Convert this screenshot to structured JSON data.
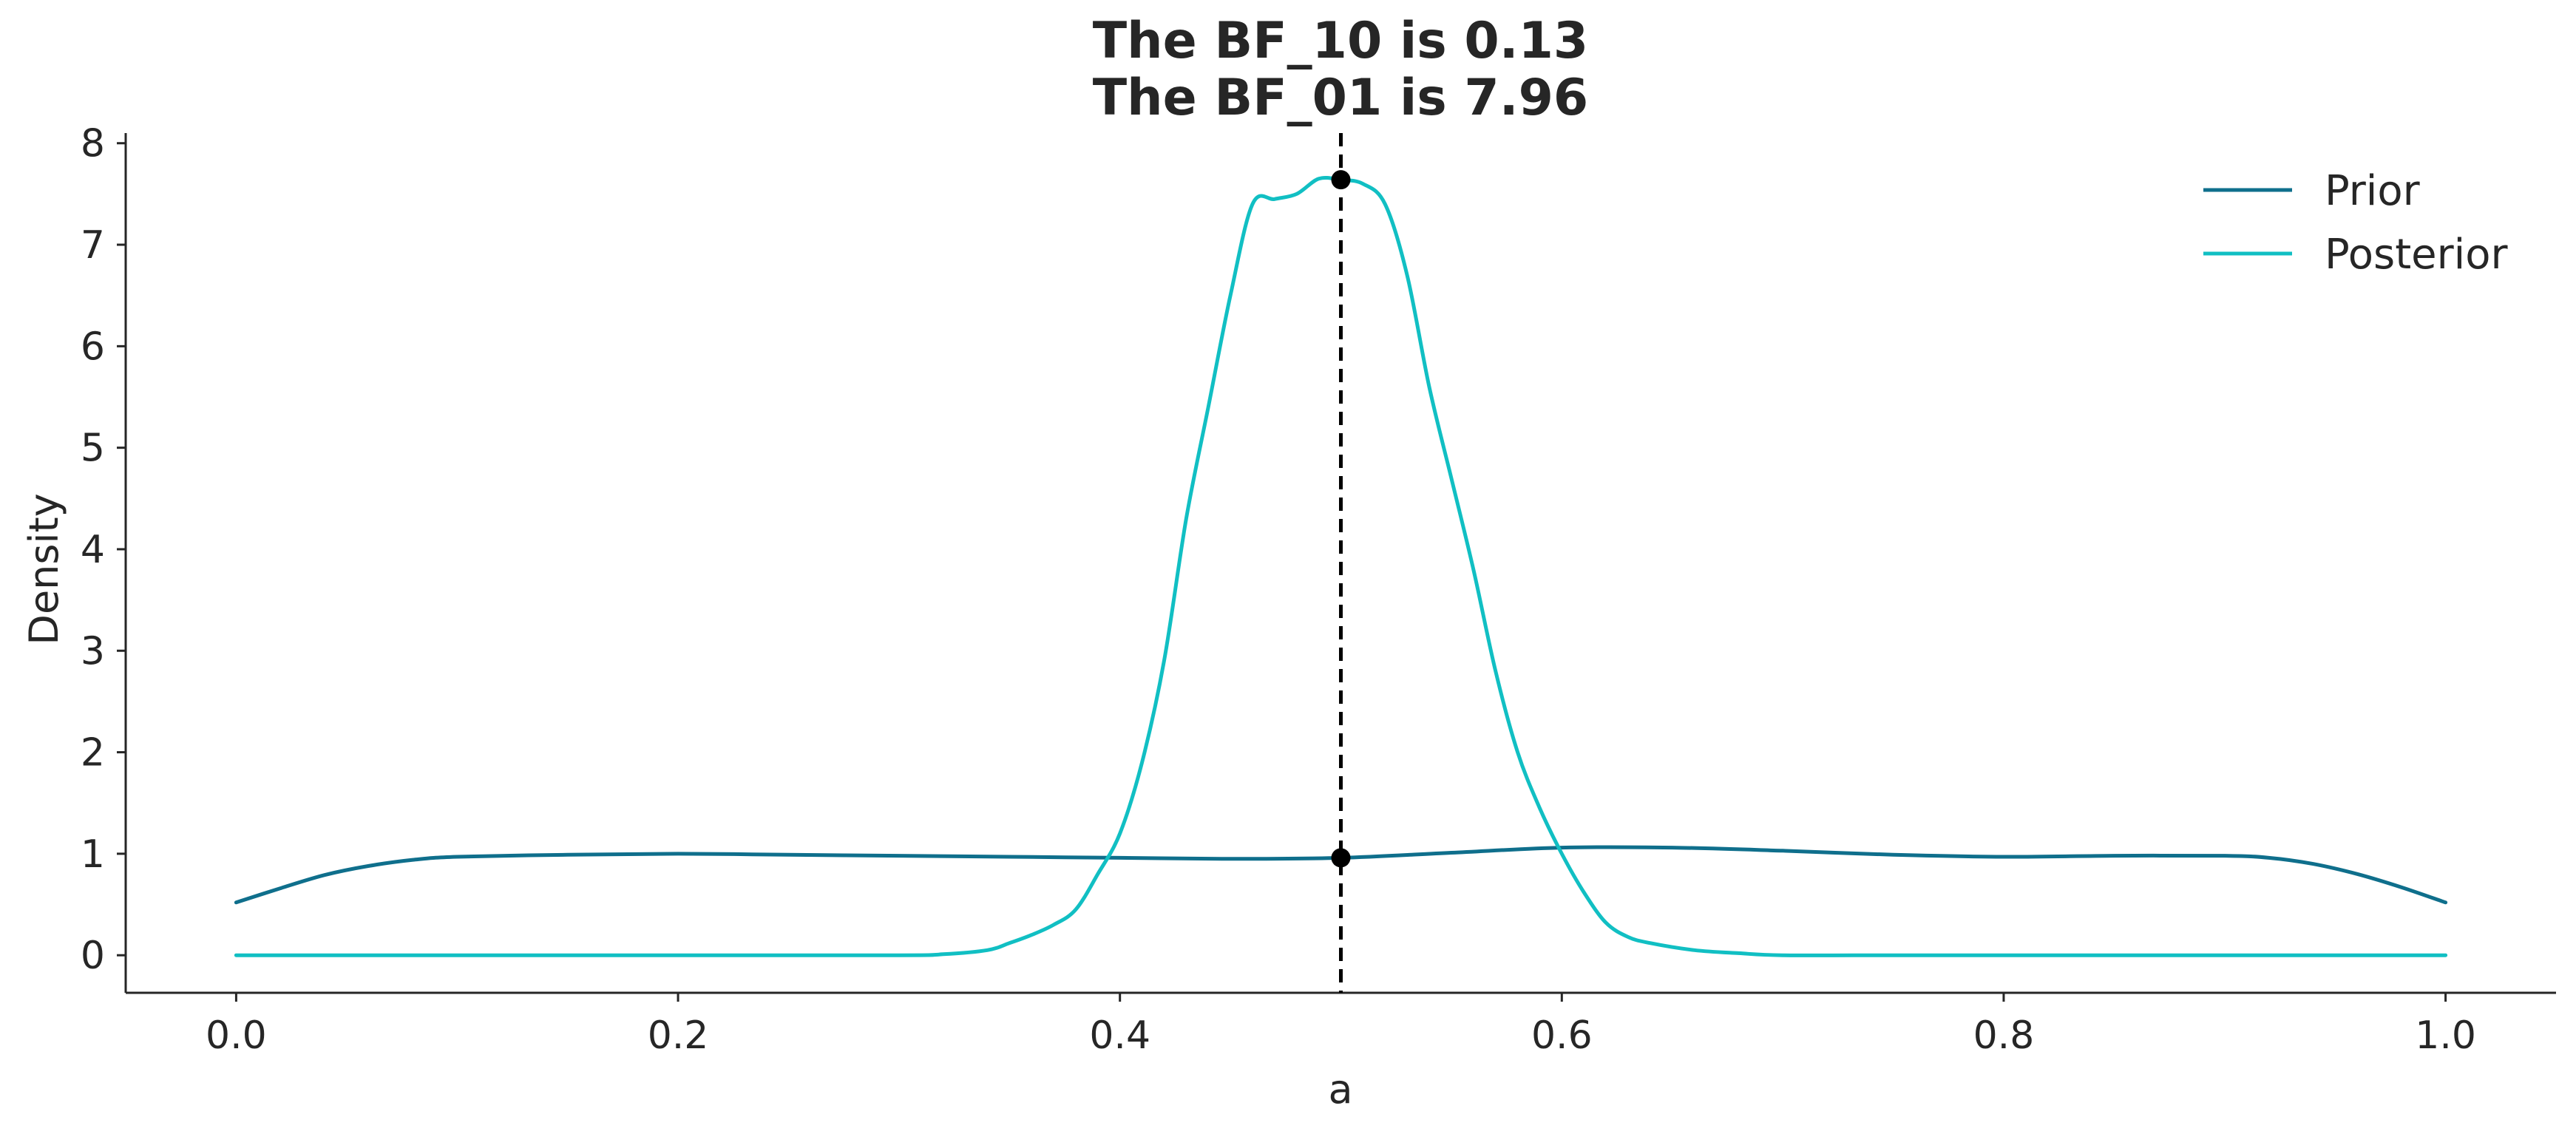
{
  "chart_data": {
    "type": "line",
    "title_lines": [
      "The BF_10 is 0.13",
      "The BF_01 is 7.96"
    ],
    "xlabel": "a",
    "ylabel": "Density",
    "xlim": [
      -0.05,
      1.05
    ],
    "ylim": [
      -0.37,
      8.1
    ],
    "x_ticks": [
      0.0,
      0.2,
      0.4,
      0.6,
      0.8,
      1.0
    ],
    "x_tick_labels": [
      "0.0",
      "0.2",
      "0.4",
      "0.6",
      "0.8",
      "1.0"
    ],
    "y_ticks": [
      0,
      1,
      2,
      3,
      4,
      5,
      6,
      7,
      8
    ],
    "y_tick_labels": [
      "0",
      "1",
      "2",
      "3",
      "4",
      "5",
      "6",
      "7",
      "8"
    ],
    "grid": false,
    "legend_position": "top-right",
    "reference_line": {
      "x": 0.5,
      "style": "dashed",
      "color": "#000000"
    },
    "reference_points": [
      {
        "x": 0.5,
        "y": 7.64,
        "series": "Posterior"
      },
      {
        "x": 0.5,
        "y": 0.96,
        "series": "Prior"
      }
    ],
    "series": [
      {
        "name": "Prior",
        "color": "#0f6f8c",
        "x": [
          0.0,
          0.02,
          0.04,
          0.06,
          0.08,
          0.1,
          0.15,
          0.2,
          0.25,
          0.3,
          0.35,
          0.4,
          0.45,
          0.5,
          0.55,
          0.6,
          0.65,
          0.7,
          0.75,
          0.8,
          0.85,
          0.9,
          0.92,
          0.94,
          0.96,
          0.98,
          1.0
        ],
        "y": [
          0.52,
          0.66,
          0.79,
          0.88,
          0.94,
          0.97,
          0.99,
          1.0,
          0.99,
          0.98,
          0.97,
          0.96,
          0.95,
          0.96,
          1.01,
          1.06,
          1.06,
          1.03,
          0.99,
          0.97,
          0.98,
          0.98,
          0.96,
          0.9,
          0.8,
          0.67,
          0.52
        ]
      },
      {
        "name": "Posterior",
        "color": "#11bfc3",
        "x": [
          0.0,
          0.1,
          0.2,
          0.3,
          0.32,
          0.34,
          0.35,
          0.36,
          0.37,
          0.38,
          0.39,
          0.4,
          0.41,
          0.42,
          0.43,
          0.44,
          0.45,
          0.46,
          0.47,
          0.48,
          0.49,
          0.5,
          0.51,
          0.52,
          0.53,
          0.54,
          0.55,
          0.56,
          0.57,
          0.58,
          0.59,
          0.6,
          0.61,
          0.62,
          0.63,
          0.64,
          0.66,
          0.68,
          0.7,
          0.75,
          0.8,
          0.9,
          1.0
        ],
        "y": [
          0.0,
          0.0,
          0.0,
          0.0,
          0.01,
          0.05,
          0.12,
          0.2,
          0.3,
          0.45,
          0.8,
          1.2,
          1.9,
          2.9,
          4.3,
          5.4,
          6.5,
          7.4,
          7.45,
          7.5,
          7.65,
          7.64,
          7.6,
          7.4,
          6.7,
          5.6,
          4.7,
          3.8,
          2.8,
          2.0,
          1.45,
          1.0,
          0.62,
          0.32,
          0.18,
          0.12,
          0.05,
          0.02,
          0.0,
          0.0,
          0.0,
          0.0,
          0.0
        ]
      }
    ]
  }
}
